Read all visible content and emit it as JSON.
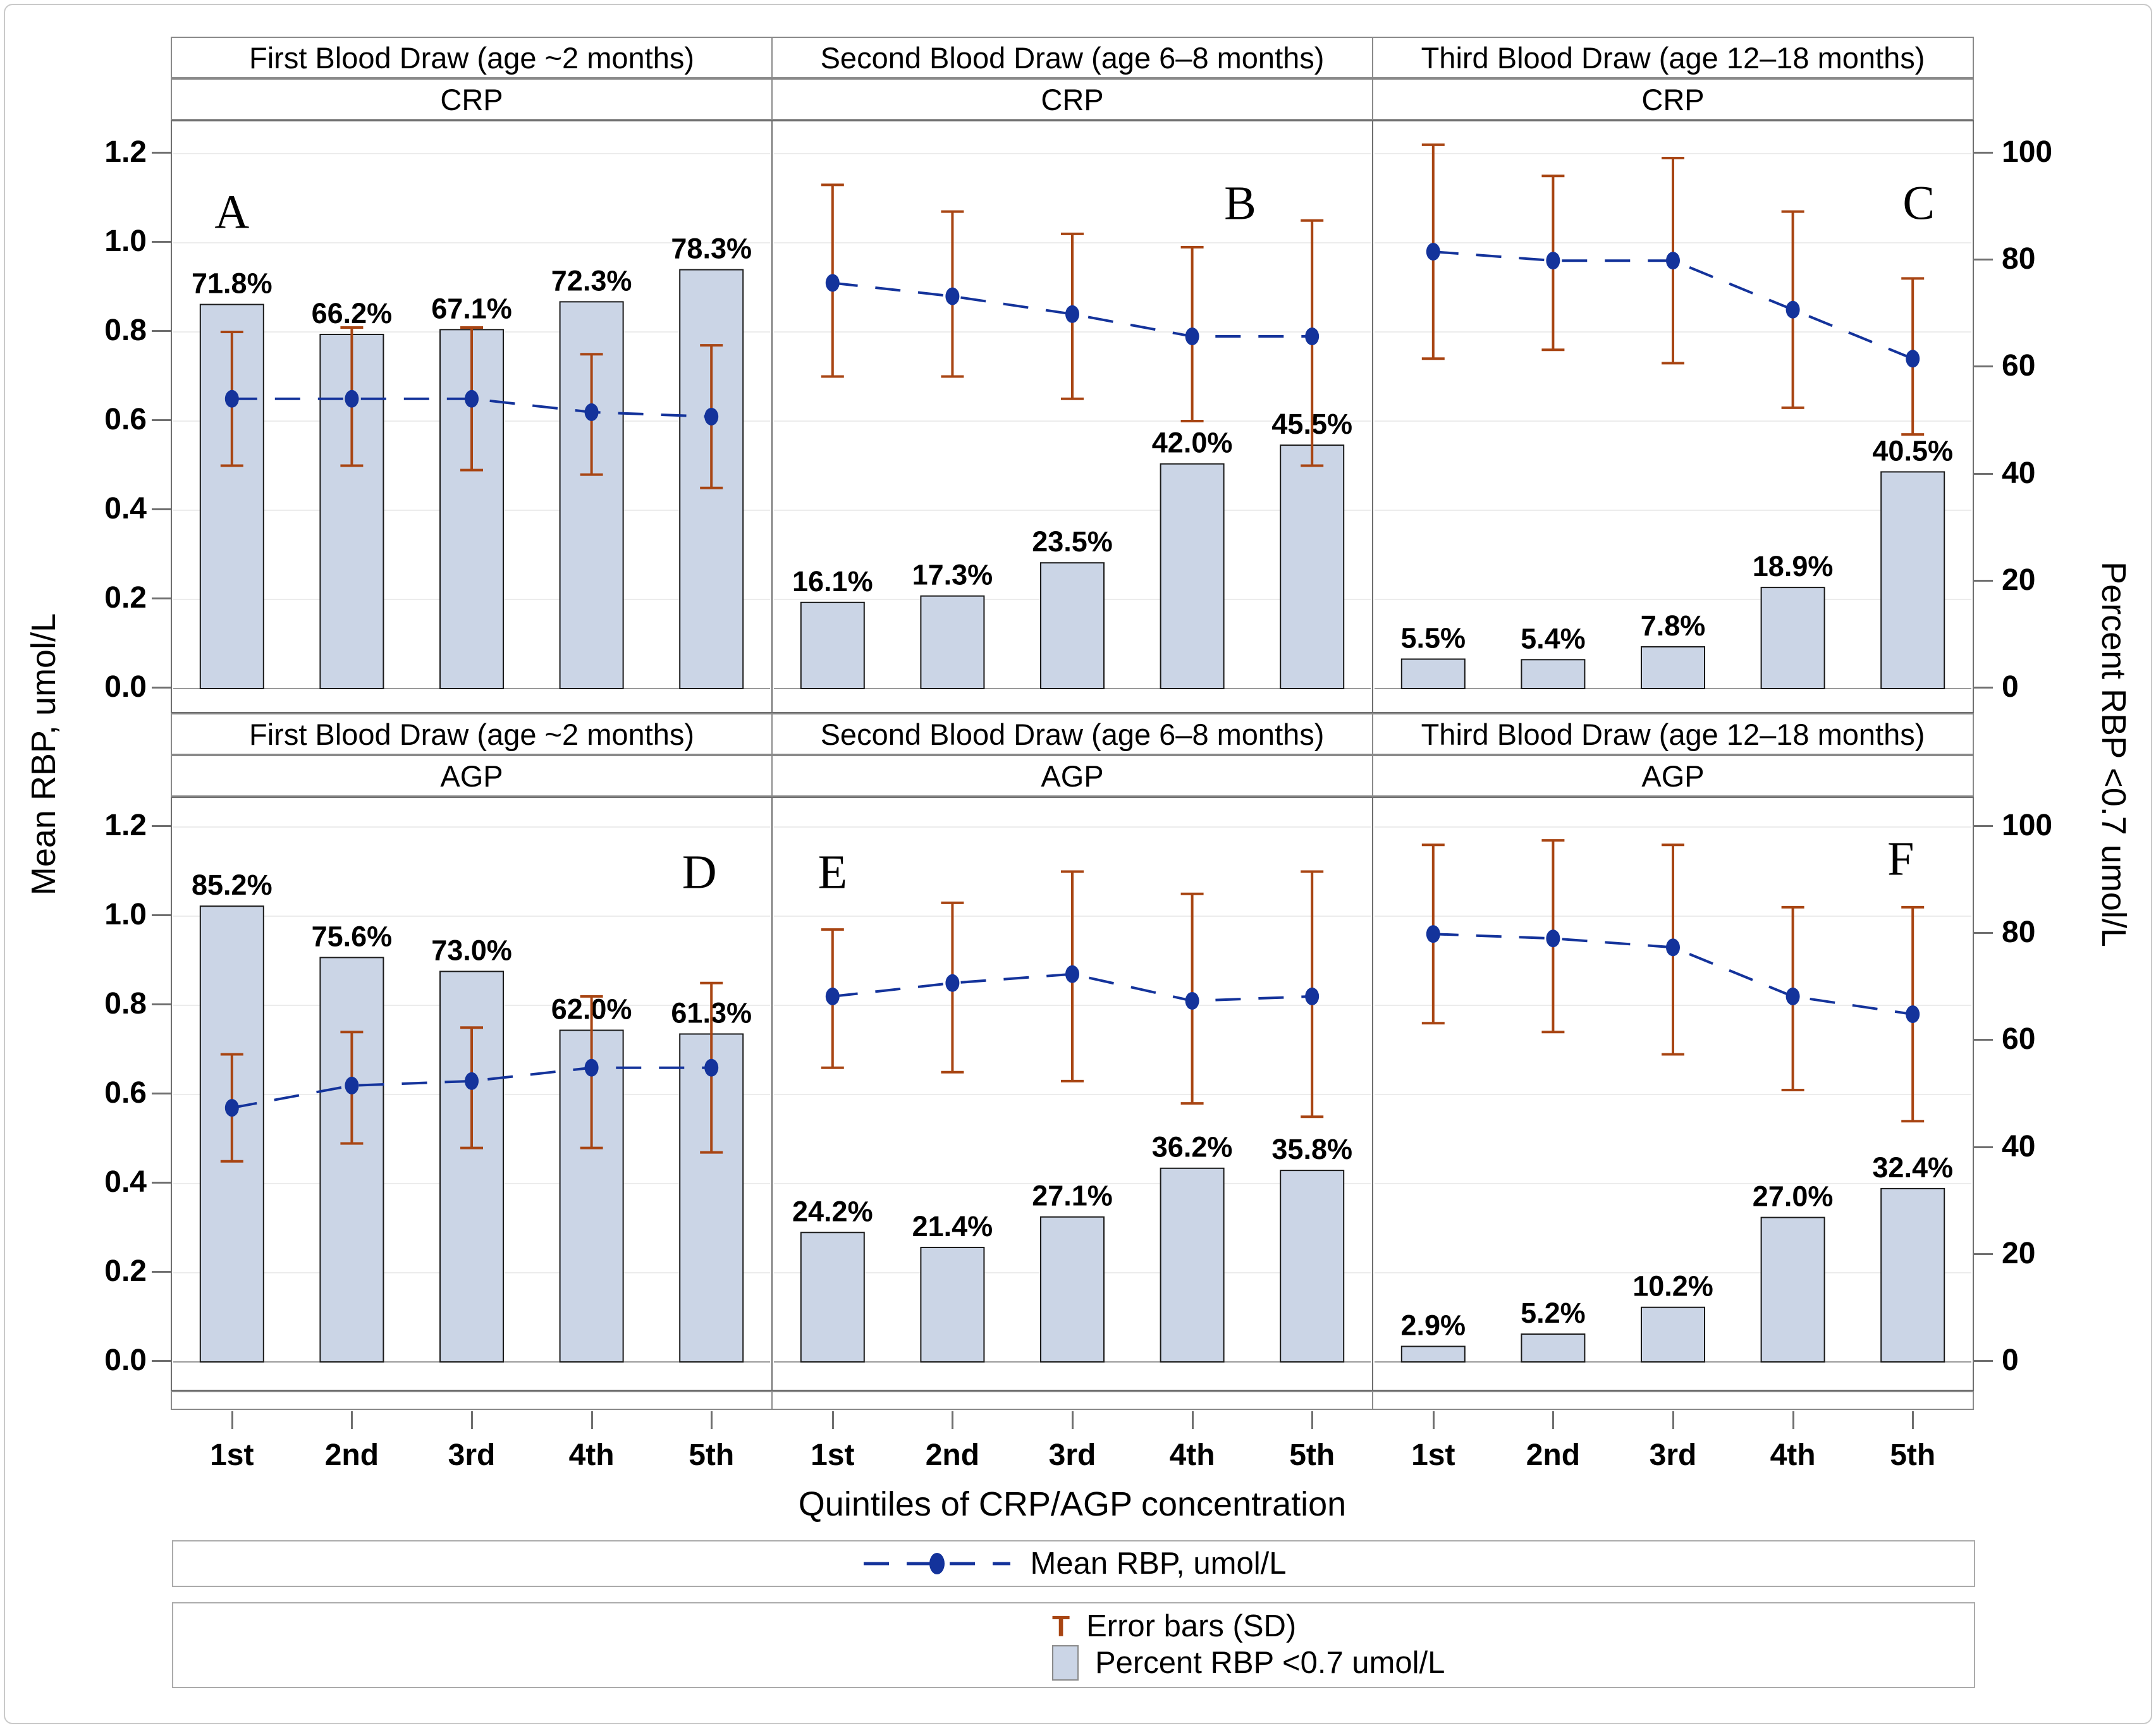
{
  "figure": {
    "x_axis_title": "Quintiles of CRP/AGP concentration",
    "y_left_title": "Mean RBP, umol/L",
    "y_right_title": "Percent RBP <0.7 umol/L"
  },
  "axes": {
    "y_left_ticks": [
      "0.0",
      "0.2",
      "0.4",
      "0.6",
      "0.8",
      "1.0",
      "1.2"
    ],
    "y_right_ticks": [
      "0",
      "20",
      "40",
      "60",
      "80",
      "100"
    ],
    "x_ticks": [
      "1st",
      "2nd",
      "3rd",
      "4th",
      "5th"
    ],
    "y_left_range": [
      0,
      1.2
    ],
    "y_right_range": [
      0,
      100
    ],
    "gridlines": "horizontal-light"
  },
  "legend": {
    "line_label": "Mean RBP, umol/L",
    "error_symbol": "T",
    "error_label": "Error bars (SD)",
    "bar_label": "Percent RBP <0.7 umol/L",
    "position": "bottom"
  },
  "colors": {
    "bar_fill": "#cbd5e6",
    "bar_border": "#1a1a1a",
    "line": "#14339b",
    "error": "#a84513",
    "grid": "#ececec",
    "baseline": "#9a9a9a",
    "panel_border": "#6f6f6f"
  },
  "chart_data": [
    {
      "panel": "A",
      "type": "bar",
      "column_header": "First Blood Draw (age ~2 months)",
      "group_header": "CRP",
      "categories": [
        "1st",
        "2nd",
        "3rd",
        "4th",
        "5th"
      ],
      "bar_series": {
        "name": "Percent RBP <0.7 umol/L",
        "unit": "%",
        "values": [
          71.8,
          66.2,
          67.1,
          72.3,
          78.3
        ],
        "labels": [
          "71.8%",
          "66.2%",
          "67.1%",
          "72.3%",
          "78.3%"
        ]
      },
      "line_series": {
        "name": "Mean RBP, umol/L",
        "values": [
          0.65,
          0.65,
          0.65,
          0.62,
          0.61
        ]
      },
      "error_low": [
        0.5,
        0.5,
        0.49,
        0.48,
        0.45
      ],
      "error_high": [
        0.8,
        0.81,
        0.81,
        0.75,
        0.77
      ],
      "letter_pos": {
        "x": 0.1,
        "y": 1.07
      }
    },
    {
      "panel": "B",
      "type": "bar",
      "column_header": "Second Blood Draw (age 6–8 months)",
      "group_header": "CRP",
      "categories": [
        "1st",
        "2nd",
        "3rd",
        "4th",
        "5th"
      ],
      "bar_series": {
        "name": "Percent RBP <0.7 umol/L",
        "unit": "%",
        "values": [
          16.1,
          17.3,
          23.5,
          42.0,
          45.5
        ],
        "labels": [
          "16.1%",
          "17.3%",
          "23.5%",
          "42.0%",
          "45.5%"
        ]
      },
      "line_series": {
        "name": "Mean RBP, umol/L",
        "values": [
          0.91,
          0.88,
          0.84,
          0.79,
          0.79
        ]
      },
      "error_low": [
        0.7,
        0.7,
        0.65,
        0.6,
        0.5
      ],
      "error_high": [
        1.13,
        1.07,
        1.02,
        0.99,
        1.05
      ],
      "letter_pos": {
        "x": 0.78,
        "y": 1.09
      }
    },
    {
      "panel": "C",
      "type": "bar",
      "column_header": "Third Blood Draw (age 12–18 months)",
      "group_header": "CRP",
      "categories": [
        "1st",
        "2nd",
        "3rd",
        "4th",
        "5th"
      ],
      "bar_series": {
        "name": "Percent RBP <0.7 umol/L",
        "unit": "%",
        "values": [
          5.5,
          5.4,
          7.8,
          18.9,
          40.5
        ],
        "labels": [
          "5.5%",
          "5.4%",
          "7.8%",
          "18.9%",
          "40.5%"
        ]
      },
      "line_series": {
        "name": "Mean RBP, umol/L",
        "values": [
          0.98,
          0.96,
          0.96,
          0.85,
          0.74
        ]
      },
      "error_low": [
        0.74,
        0.76,
        0.73,
        0.63,
        0.57
      ],
      "error_high": [
        1.22,
        1.15,
        1.19,
        1.07,
        0.92
      ],
      "letter_pos": {
        "x": 0.91,
        "y": 1.09
      }
    },
    {
      "panel": "D",
      "type": "bar",
      "column_header": "First Blood Draw (age ~2 months)",
      "group_header": "AGP",
      "categories": [
        "1st",
        "2nd",
        "3rd",
        "4th",
        "5th"
      ],
      "bar_series": {
        "name": "Percent RBP <0.7 umol/L",
        "unit": "%",
        "values": [
          85.2,
          75.6,
          73.0,
          62.0,
          61.3
        ],
        "labels": [
          "85.2%",
          "75.6%",
          "73.0%",
          "62.0%",
          "61.3%"
        ]
      },
      "line_series": {
        "name": "Mean RBP, umol/L",
        "values": [
          0.57,
          0.62,
          0.63,
          0.66,
          0.66
        ]
      },
      "error_low": [
        0.45,
        0.49,
        0.48,
        0.48,
        0.47
      ],
      "error_high": [
        0.69,
        0.74,
        0.75,
        0.82,
        0.85
      ],
      "letter_pos": {
        "x": 0.88,
        "y": 1.1
      }
    },
    {
      "panel": "E",
      "type": "bar",
      "column_header": "Second Blood Draw (age 6–8 months)",
      "group_header": "AGP",
      "categories": [
        "1st",
        "2nd",
        "3rd",
        "4th",
        "5th"
      ],
      "bar_series": {
        "name": "Percent RBP <0.7 umol/L",
        "unit": "%",
        "values": [
          24.2,
          21.4,
          27.1,
          36.2,
          35.8
        ],
        "labels": [
          "24.2%",
          "21.4%",
          "27.1%",
          "36.2%",
          "35.8%"
        ]
      },
      "line_series": {
        "name": "Mean RBP, umol/L",
        "values": [
          0.82,
          0.85,
          0.87,
          0.81,
          0.82
        ]
      },
      "error_low": [
        0.66,
        0.65,
        0.63,
        0.58,
        0.55
      ],
      "error_high": [
        0.97,
        1.03,
        1.1,
        1.05,
        1.1
      ],
      "letter_pos": {
        "x": 0.1,
        "y": 1.1
      }
    },
    {
      "panel": "F",
      "type": "bar",
      "column_header": "Third Blood Draw (age 12–18 months)",
      "group_header": "AGP",
      "categories": [
        "1st",
        "2nd",
        "3rd",
        "4th",
        "5th"
      ],
      "bar_series": {
        "name": "Percent RBP <0.7 umol/L",
        "unit": "%",
        "values": [
          2.9,
          5.2,
          10.2,
          27.0,
          32.4
        ],
        "labels": [
          "2.9%",
          "5.2%",
          "10.2%",
          "27.0%",
          "32.4%"
        ]
      },
      "line_series": {
        "name": "Mean RBP, umol/L",
        "values": [
          0.96,
          0.95,
          0.93,
          0.82,
          0.78
        ]
      },
      "error_low": [
        0.76,
        0.74,
        0.69,
        0.61,
        0.54
      ],
      "error_high": [
        1.16,
        1.17,
        1.16,
        1.02,
        1.02
      ],
      "letter_pos": {
        "x": 0.88,
        "y": 1.13
      }
    }
  ]
}
